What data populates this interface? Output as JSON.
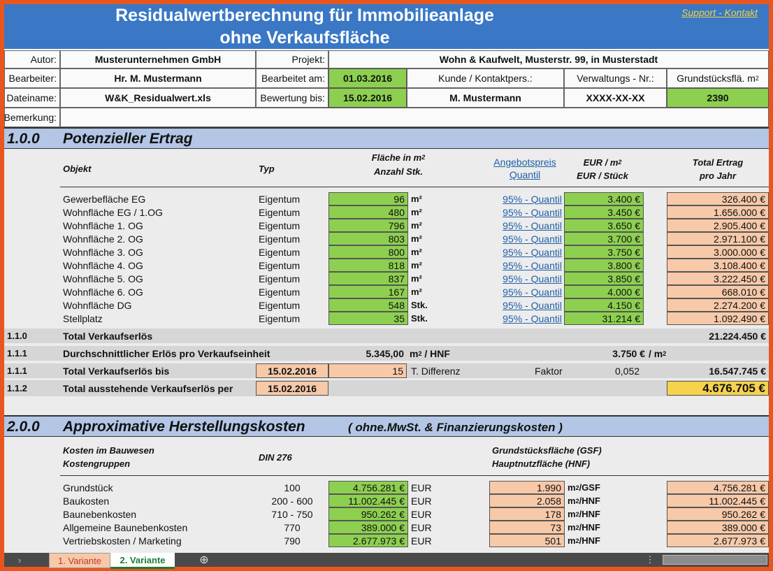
{
  "header": {
    "title_line1": "Residualwertberechnung für Immobilieanlage",
    "title_line2": "ohne Verkaufsfläche",
    "support_link": "Support - Kontakt"
  },
  "info": {
    "autor_label": "Autor:",
    "autor_value": "Musterunternehmen GmbH",
    "projekt_label": "Projekt:",
    "projekt_value": "Wohn & Kaufwelt, Musterstr. 99, in Musterstadt",
    "bearbeiter_label": "Bearbeiter:",
    "bearbeiter_value": "Hr. M. Mustermann",
    "bearbeitet_label": "Bearbeitet am:",
    "bearbeitet_value": "01.03.2016",
    "kunde_label": "Kunde / Kontaktpers.:",
    "verwaltung_label": "Verwaltungs - Nr.:",
    "grund_label": "Grundstücksflä. m",
    "dateiname_label": "Dateiname:",
    "dateiname_value": "W&K_Residualwert.xls",
    "bewertung_label": "Bewertung bis:",
    "bewertung_value": "15.02.2016",
    "kunde_value": "M. Mustermann",
    "verwaltung_value": "XXXX-XX-XX",
    "grund_value": "2390",
    "bemerkung_label": "Bemerkung:"
  },
  "section1": {
    "num": "1.0.0",
    "title": "Potenzieller Ertrag",
    "col_objekt": "Objekt",
    "col_typ": "Typ",
    "col_flaeche_1": "Fläche in m",
    "col_flaeche_2": "Anzahl Stk.",
    "col_angebot_1": "Angebotspreis",
    "col_angebot_2": "Quantil",
    "col_eur_1": "EUR / m",
    "col_eur_2": "EUR / Stück",
    "col_total_1": "Total Ertrag",
    "col_total_2": "pro Jahr",
    "rows": [
      {
        "objekt": "Gewerbefläche EG",
        "typ": "Eigentum",
        "menge": "96",
        "einheit": "m²",
        "quantil": "95% - Quantil",
        "preis": "3.400 €",
        "total": "326.400 €"
      },
      {
        "objekt": "Wohnfläche EG / 1.OG",
        "typ": "Eigentum",
        "menge": "480",
        "einheit": "m²",
        "quantil": "95% - Quantil",
        "preis": "3.450 €",
        "total": "1.656.000 €"
      },
      {
        "objekt": "Wohnfläche 1. OG",
        "typ": "Eigentum",
        "menge": "796",
        "einheit": "m²",
        "quantil": "95% - Quantil",
        "preis": "3.650 €",
        "total": "2.905.400 €"
      },
      {
        "objekt": "Wohnfläche 2. OG",
        "typ": "Eigentum",
        "menge": "803",
        "einheit": "m²",
        "quantil": "95% - Quantil",
        "preis": "3.700 €",
        "total": "2.971.100 €"
      },
      {
        "objekt": "Wohnfläche 3. OG",
        "typ": "Eigentum",
        "menge": "800",
        "einheit": "m²",
        "quantil": "95% - Quantil",
        "preis": "3.750 €",
        "total": "3.000.000 €"
      },
      {
        "objekt": "Wohnfläche 4. OG",
        "typ": "Eigentum",
        "menge": "818",
        "einheit": "m²",
        "quantil": "95% - Quantil",
        "preis": "3.800 €",
        "total": "3.108.400 €"
      },
      {
        "objekt": "Wohnfläche 5. OG",
        "typ": "Eigentum",
        "menge": "837",
        "einheit": "m²",
        "quantil": "95% - Quantil",
        "preis": "3.850 €",
        "total": "3.222.450 €"
      },
      {
        "objekt": "Wohnfläche 6. OG",
        "typ": "Eigentum",
        "menge": "167",
        "einheit": "m²",
        "quantil": "95% - Quantil",
        "preis": "4.000 €",
        "total": "668.010 €"
      },
      {
        "objekt": "Wohnfläche DG",
        "typ": "Eigentum",
        "menge": "548",
        "einheit": "Stk.",
        "quantil": "95% - Quantil",
        "preis": "4.150 €",
        "total": "2.274.200 €"
      },
      {
        "objekt": "Stellplatz",
        "typ": "Eigentum",
        "menge": "35",
        "einheit": "Stk.",
        "quantil": "95% - Quantil",
        "preis": "31.214 €",
        "total": "1.092.490 €"
      }
    ],
    "total_num": "1.1.0",
    "total_label": "Total Verkaufserlös",
    "total_value": "21.224.450 €",
    "avg_num": "1.1.1",
    "avg_label": "Durchschnittlicher Erlös pro Verkaufseinheit",
    "avg_value": "5.345,00",
    "avg_unit": "/ HNF",
    "avg_price": "3.750 €",
    "avg_price_unit": "/ m",
    "bis_num": "1.1.1",
    "bis_label": "Total Verkaufserlös bis",
    "bis_date": "15.02.2016",
    "bis_diff": "15",
    "bis_diff_label": "T. Differenz",
    "faktor_label": "Faktor",
    "faktor_value": "0,052",
    "bis_value": "16.547.745 €",
    "aus_num": "1.1.2",
    "aus_label": "Total ausstehende Verkaufserlös per",
    "aus_date": "15.02.2016",
    "aus_value": "4.676.705 €"
  },
  "section2": {
    "num": "2.0.0",
    "title": "Approximative Herstellungskosten",
    "subtitle": "( ohne.MwSt. & Finanzierungskosten )",
    "col_kosten_1": "Kosten im Bauwesen",
    "col_kosten_2": "Kostengruppen",
    "col_din": "DIN 276",
    "col_gsf_1": "Grundstücksfläche (GSF)",
    "col_gsf_2": "Hauptnutzfläche (HNF)",
    "rows": [
      {
        "name": "Grundstück",
        "din": "100",
        "betrag": "4.756.281 €",
        "cur": "EUR",
        "pro": "1.990",
        "unit": "/GSF",
        "total": "4.756.281 €"
      },
      {
        "name": "Baukosten",
        "din": "200 - 600",
        "betrag": "11.002.445 €",
        "cur": "EUR",
        "pro": "2.058",
        "unit": "/HNF",
        "total": "11.002.445 €"
      },
      {
        "name": "Baunebenkosten",
        "din": "710 - 750",
        "betrag": "950.262 €",
        "cur": "EUR",
        "pro": "178",
        "unit": "/HNF",
        "total": "950.262 €"
      },
      {
        "name": "Allgemeine Baunebenkosten",
        "din": "770",
        "betrag": "389.000 €",
        "cur": "EUR",
        "pro": "73",
        "unit": "/HNF",
        "total": "389.000 €"
      },
      {
        "name": "Vertriebskosten / Marketing",
        "din": "790",
        "betrag": "2.677.973 €",
        "cur": "EUR",
        "pro": "501",
        "unit": "/HNF",
        "total": "2.677.973 €"
      }
    ]
  },
  "tabs": {
    "tab1": "1. Variante",
    "tab2": "2. Variante",
    "add": "⊕",
    "more": "⋮"
  },
  "colors": {
    "header_blue": "#3a78c5",
    "input_green": "#8dd050",
    "calc_peach": "#f7c9a9",
    "result_yellow": "#f7d34d",
    "section_blue": "#b3c6e6"
  }
}
